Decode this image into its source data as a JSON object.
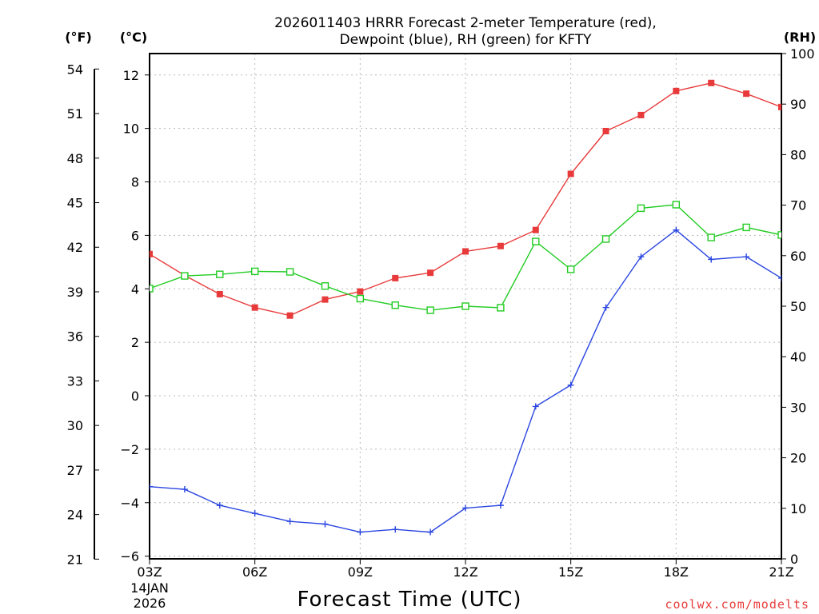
{
  "chart_data": {
    "type": "line",
    "title_line1": "2026011403 HRRR Forecast 2-meter Temperature (red),",
    "title_line2": "Dewpoint (blue), RH (green) for KFTY",
    "xlabel": "Forecast Time (UTC)",
    "start_label_day": "14JAN",
    "start_label_year": "2026",
    "credit": "coolwx.com/modelts",
    "unit_f": "(°F)",
    "unit_c": "(°C)",
    "unit_rh": "(RH)",
    "x_tick_labels": [
      "03Z",
      "06Z",
      "09Z",
      "12Z",
      "15Z",
      "18Z",
      "21Z"
    ],
    "x_tick_hours": [
      3,
      6,
      9,
      12,
      15,
      18,
      21
    ],
    "x_range": [
      3,
      21
    ],
    "ylim_c": [
      -6.1,
      12.8
    ],
    "ylim_rh": [
      0,
      100
    ],
    "y_ticks_c": [
      "-6",
      "-4",
      "-2",
      "0",
      "2",
      "4",
      "6",
      "8",
      "10",
      "12"
    ],
    "y_ticks_f": [
      "21",
      "24",
      "27",
      "30",
      "33",
      "36",
      "39",
      "42",
      "45",
      "48",
      "51",
      "54"
    ],
    "y_ticks_rh": [
      "0",
      "10",
      "20",
      "30",
      "40",
      "50",
      "60",
      "70",
      "80",
      "90",
      "100"
    ],
    "hours": [
      3,
      4,
      5,
      6,
      7,
      8,
      9,
      10,
      11,
      12,
      13,
      14,
      15,
      16,
      17,
      18,
      19,
      20,
      21
    ],
    "series": [
      {
        "name": "Temperature",
        "unit": "C",
        "color": "#e83a3a",
        "marker": "filled-square",
        "values": [
          5.3,
          4.5,
          3.8,
          3.3,
          3.0,
          3.6,
          3.9,
          4.4,
          4.6,
          5.4,
          5.6,
          6.2,
          8.3,
          9.9,
          10.5,
          11.4,
          11.7,
          11.3,
          10.8
        ]
      },
      {
        "name": "Dewpoint",
        "unit": "C",
        "color": "#2a46e0",
        "marker": "plus",
        "values": [
          -3.4,
          -3.5,
          -4.1,
          -4.4,
          -4.7,
          -4.8,
          -5.1,
          -5.0,
          -5.1,
          -4.2,
          -4.1,
          -0.4,
          0.4,
          3.3,
          5.2,
          6.2,
          5.1,
          5.2,
          4.4
        ]
      },
      {
        "name": "RH",
        "unit": "%",
        "color": "#22cc22",
        "marker": "open-square",
        "values": [
          53.5,
          56.0,
          56.3,
          56.9,
          56.8,
          54.0,
          51.5,
          50.2,
          49.2,
          50.0,
          49.7,
          62.8,
          57.3,
          63.3,
          69.4,
          70.1,
          63.6,
          65.6,
          64.1
        ]
      }
    ]
  }
}
